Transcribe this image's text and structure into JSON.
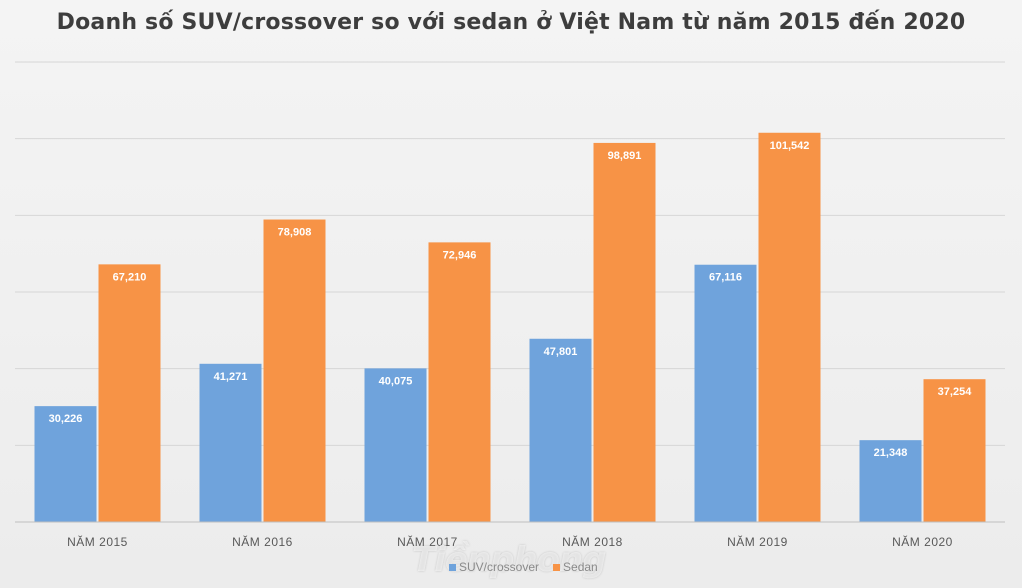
{
  "title": "Doanh số SUV/crossover so với sedan ở Việt Nam từ năm 2015 đến 2020",
  "watermark": "Tiềnphong",
  "colors": {
    "suv": "#6fa3dc",
    "sedan": "#f79346",
    "gridline": "#d6d6d6",
    "axis": "#bfbfbf",
    "tick_text": "#595959",
    "data_label": "#ffffff"
  },
  "chart_data": {
    "type": "bar",
    "title": "Doanh số SUV/crossover so với sedan ở Việt Nam từ năm 2015 đến 2020",
    "categories": [
      "NĂM 2015",
      "NĂM 2016",
      "NĂM 2017",
      "NĂM 2018",
      "NĂM 2019",
      "NĂM 2020"
    ],
    "series": [
      {
        "name": "SUV/crossover",
        "values": [
          30226,
          41271,
          40075,
          47801,
          67116,
          21348
        ],
        "labels": [
          "30,226",
          "41,271",
          "40,075",
          "47,801",
          "67,116",
          "21,348"
        ]
      },
      {
        "name": "Sedan",
        "values": [
          67210,
          78908,
          72946,
          98891,
          101542,
          37254
        ],
        "labels": [
          "67,210",
          "78,908",
          "72,946",
          "98,891",
          "101,542",
          "37,254"
        ]
      }
    ],
    "ylim": [
      0,
      120000
    ],
    "y_gridlines": [
      0,
      20000,
      40000,
      60000,
      80000,
      100000,
      120000
    ],
    "y_tick_labels_visible": false,
    "xlabel": "",
    "ylabel": "",
    "legend_position": "bottom",
    "grid": true
  }
}
